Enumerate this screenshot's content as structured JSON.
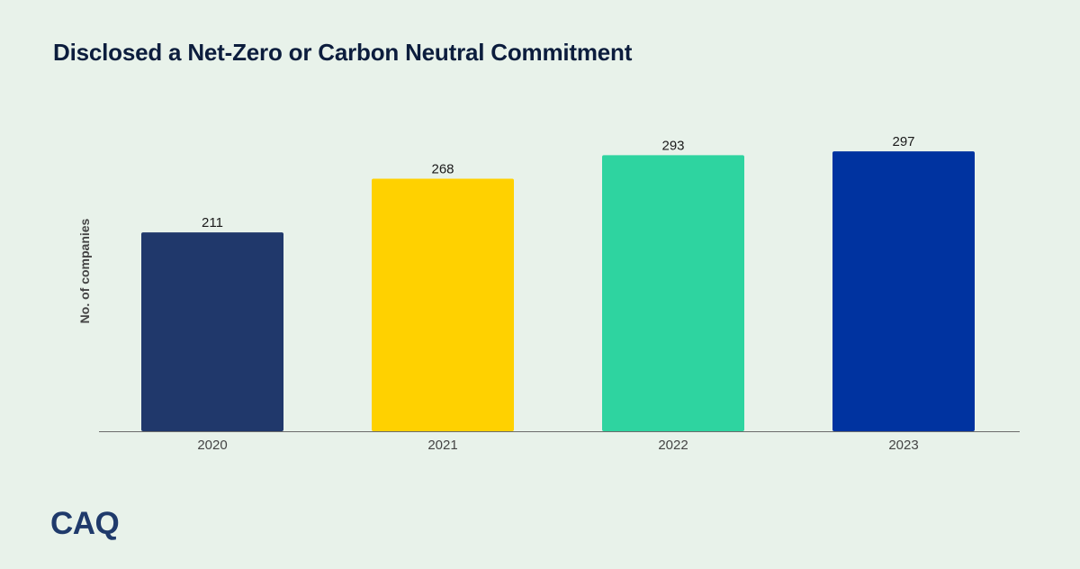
{
  "title": "Disclosed a Net-Zero or Carbon Neutral Commitment",
  "logo_text": "CAQ",
  "chart_data": {
    "type": "bar",
    "categories": [
      "2020",
      "2021",
      "2022",
      "2023"
    ],
    "values": [
      211,
      268,
      293,
      297
    ],
    "data_labels": [
      "211",
      "268",
      "293",
      "297"
    ],
    "ylabel": "No. of companies",
    "xlabel": "",
    "ylim": [
      0,
      300
    ],
    "colors": [
      "#20386b",
      "#ffd100",
      "#2ed4a0",
      "#0033a0"
    ],
    "grid": false,
    "legend": "none"
  }
}
